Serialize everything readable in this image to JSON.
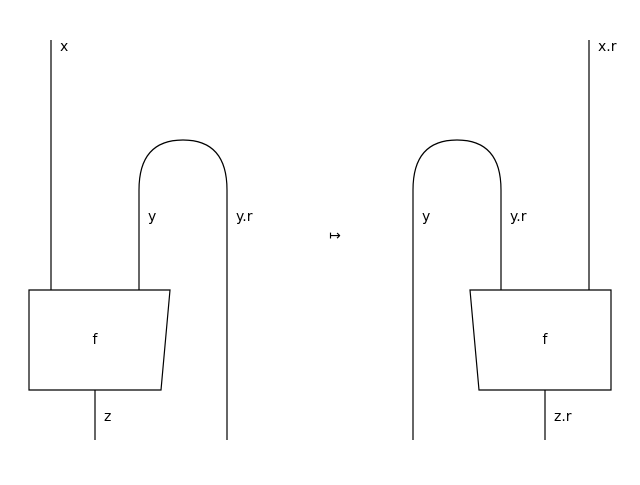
{
  "left_diagram": {
    "labels": {
      "x": "x",
      "y": "y",
      "yr": "y.r",
      "z": "z"
    },
    "box_label": "f"
  },
  "arrow": "↦",
  "right_diagram": {
    "labels": {
      "xr": "x.r",
      "y": "y",
      "yr": "y.r",
      "zr": "z.r"
    },
    "box_label": "f"
  }
}
